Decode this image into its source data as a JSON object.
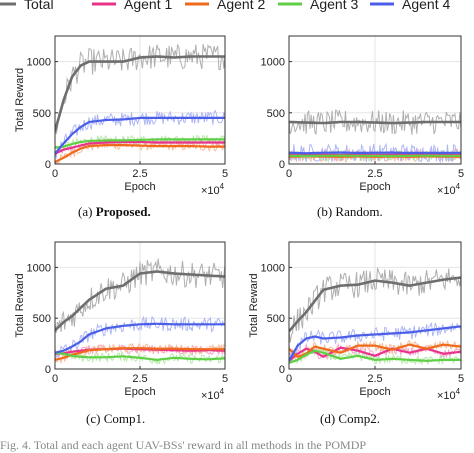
{
  "legend": {
    "entries": [
      {
        "label": "Total",
        "color": "#6e6e6e"
      },
      {
        "label": "Agent 1",
        "color": "#e8338a"
      },
      {
        "label": "Agent 2",
        "color": "#ef6a1a"
      },
      {
        "label": "Agent 3",
        "color": "#5fcf45"
      },
      {
        "label": "Agent 4",
        "color": "#4a5ee8"
      }
    ]
  },
  "captions": [
    {
      "tag": "(a)",
      "name": "Proposed."
    },
    {
      "tag": "(b)",
      "name": "Random."
    },
    {
      "tag": "(c)",
      "name": "Comp1."
    },
    {
      "tag": "(d)",
      "name": "Comp2."
    }
  ],
  "footer_text": "Fig. 4.  Total and each agent UAV-BSs' reward in all methods in the POMDP",
  "chart_data": [
    {
      "type": "line",
      "panel": "a",
      "xlabel": "Epoch",
      "ylabel": "Total Reward",
      "x_multiplier": "×10^4",
      "xticks": [
        "0",
        "2.5",
        "5"
      ],
      "yticks": [
        "0",
        "500",
        "1000"
      ],
      "xlim": [
        0,
        5
      ],
      "ylim": [
        0,
        1250
      ],
      "x": [
        0,
        0.25,
        0.5,
        0.75,
        1.0,
        1.5,
        2.0,
        2.5,
        3.0,
        3.5,
        4.0,
        4.5,
        5.0
      ],
      "series": [
        {
          "name": "Total",
          "values": [
            320,
            620,
            850,
            960,
            1000,
            1000,
            1000,
            1040,
            1050,
            1040,
            1050,
            1050,
            1050
          ]
        },
        {
          "name": "Agent 1",
          "values": [
            100,
            140,
            160,
            180,
            200,
            210,
            215,
            215,
            210,
            210,
            210,
            210,
            210
          ]
        },
        {
          "name": "Agent 2",
          "values": [
            20,
            60,
            110,
            150,
            175,
            185,
            185,
            180,
            175,
            175,
            175,
            170,
            170
          ]
        },
        {
          "name": "Agent 3",
          "values": [
            160,
            170,
            195,
            215,
            225,
            230,
            230,
            235,
            240,
            240,
            240,
            240,
            240
          ]
        },
        {
          "name": "Agent 4",
          "values": [
            100,
            200,
            290,
            360,
            410,
            430,
            435,
            450,
            450,
            450,
            450,
            450,
            450
          ]
        }
      ]
    },
    {
      "type": "line",
      "panel": "b",
      "xlabel": "Epoch",
      "ylabel": "",
      "x_multiplier": "×10^4",
      "xticks": [
        "0",
        "2.5",
        "5"
      ],
      "yticks": [
        "0",
        "500",
        "1000"
      ],
      "xlim": [
        0,
        5
      ],
      "ylim": [
        0,
        1250
      ],
      "x": [
        0,
        0.5,
        1.0,
        1.5,
        2.0,
        2.5,
        3.0,
        3.5,
        4.0,
        4.5,
        5.0
      ],
      "series": [
        {
          "name": "Total",
          "values": [
            410,
            405,
            400,
            410,
            410,
            405,
            400,
            405,
            410,
            410,
            410
          ]
        },
        {
          "name": "Agent 1",
          "values": [
            90,
            95,
            90,
            88,
            92,
            90,
            90,
            95,
            92,
            90,
            90
          ]
        },
        {
          "name": "Agent 2",
          "values": [
            70,
            75,
            72,
            70,
            74,
            70,
            72,
            70,
            75,
            72,
            70
          ]
        },
        {
          "name": "Agent 3",
          "values": [
            80,
            78,
            80,
            82,
            80,
            80,
            78,
            80,
            82,
            80,
            80
          ]
        },
        {
          "name": "Agent 4",
          "values": [
            110,
            105,
            110,
            112,
            108,
            110,
            112,
            108,
            110,
            108,
            110
          ]
        }
      ]
    },
    {
      "type": "line",
      "panel": "c",
      "xlabel": "Epoch",
      "ylabel": "Total Reward",
      "x_multiplier": "×10^4",
      "xticks": [
        "0",
        "2.5",
        "5"
      ],
      "yticks": [
        "0",
        "500",
        "1000"
      ],
      "xlim": [
        0,
        5
      ],
      "ylim": [
        0,
        1250
      ],
      "x": [
        0,
        0.25,
        0.5,
        0.75,
        1.0,
        1.5,
        2.0,
        2.5,
        3.0,
        3.5,
        4.0,
        4.5,
        5.0
      ],
      "series": [
        {
          "name": "Total",
          "values": [
            380,
            460,
            520,
            600,
            680,
            790,
            820,
            940,
            960,
            940,
            930,
            920,
            910
          ]
        },
        {
          "name": "Agent 1",
          "values": [
            150,
            155,
            170,
            180,
            190,
            195,
            200,
            195,
            190,
            185,
            180,
            185,
            180
          ]
        },
        {
          "name": "Agent 2",
          "values": [
            90,
            110,
            140,
            160,
            185,
            195,
            205,
            205,
            200,
            200,
            195,
            195,
            195
          ]
        },
        {
          "name": "Agent 3",
          "values": [
            160,
            150,
            130,
            120,
            115,
            115,
            125,
            110,
            90,
            110,
            100,
            95,
            105
          ]
        },
        {
          "name": "Agent 4",
          "values": [
            160,
            180,
            220,
            270,
            340,
            400,
            425,
            440,
            445,
            440,
            440,
            440,
            440
          ]
        }
      ]
    },
    {
      "type": "line",
      "panel": "d",
      "xlabel": "Epoch",
      "ylabel": "Total Reward",
      "x_multiplier": "×10^4",
      "xticks": [
        "0",
        "2.5",
        "5"
      ],
      "yticks": [
        "0",
        "500",
        "1000"
      ],
      "xlim": [
        0,
        5
      ],
      "ylim": [
        0,
        1250
      ],
      "x": [
        0,
        0.25,
        0.5,
        0.75,
        1.0,
        1.5,
        2.0,
        2.5,
        3.0,
        3.5,
        4.0,
        4.5,
        5.0
      ],
      "series": [
        {
          "name": "Total",
          "values": [
            370,
            470,
            560,
            670,
            780,
            820,
            830,
            870,
            850,
            820,
            850,
            880,
            900
          ]
        },
        {
          "name": "Agent 1",
          "values": [
            80,
            150,
            200,
            170,
            120,
            210,
            180,
            130,
            200,
            160,
            200,
            150,
            170
          ]
        },
        {
          "name": "Agent 2",
          "values": [
            200,
            120,
            150,
            220,
            200,
            160,
            230,
            230,
            190,
            240,
            200,
            240,
            220
          ]
        },
        {
          "name": "Agent 3",
          "values": [
            60,
            90,
            140,
            180,
            160,
            100,
            130,
            90,
            100,
            90,
            80,
            90,
            90
          ]
        },
        {
          "name": "Agent 4",
          "values": [
            80,
            230,
            300,
            320,
            300,
            310,
            330,
            340,
            350,
            360,
            380,
            400,
            420
          ]
        }
      ]
    }
  ]
}
